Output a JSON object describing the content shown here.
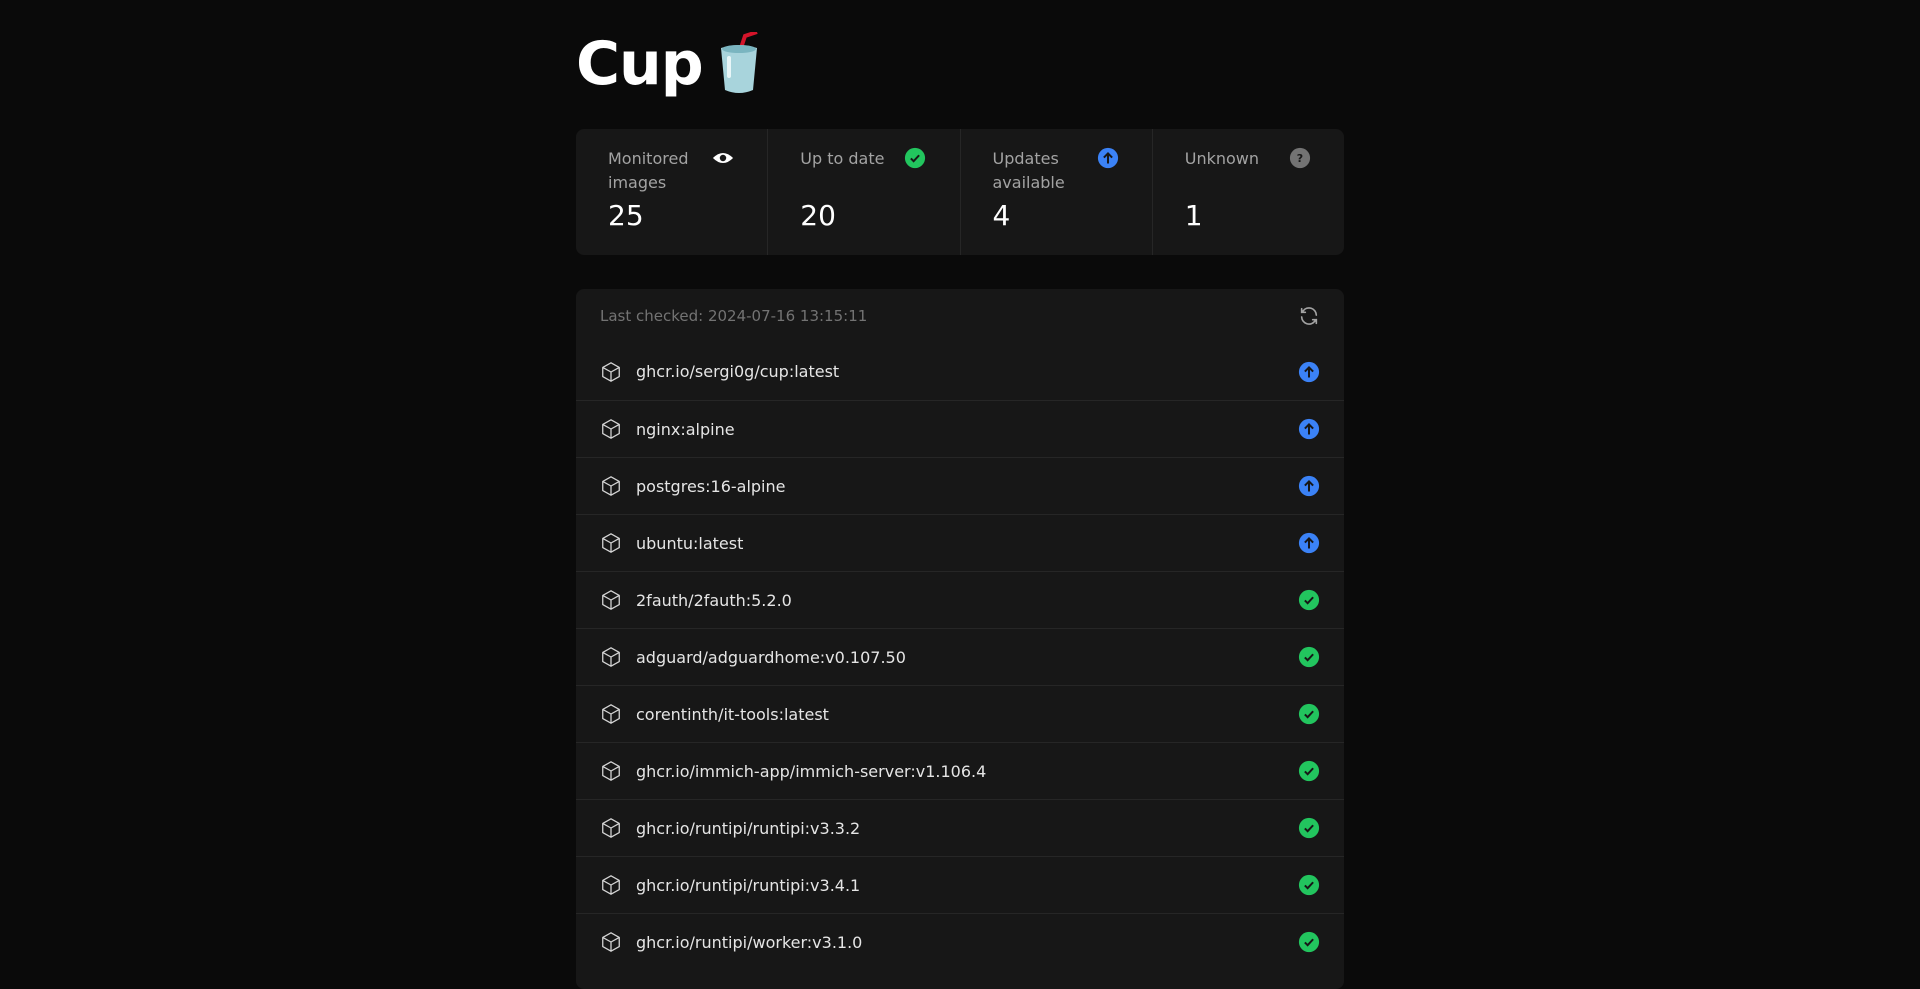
{
  "header": {
    "title": "Cup",
    "logo_icon": "cup-with-straw-icon"
  },
  "colors": {
    "up_to_date": "#22c55e",
    "update": "#3b82f6",
    "unknown": "#737373"
  },
  "stats": [
    {
      "label": "Monitored images",
      "value": "25",
      "icon": "eye-icon"
    },
    {
      "label": "Up to date",
      "value": "20",
      "icon": "check-circle-icon"
    },
    {
      "label": "Updates available",
      "value": "4",
      "icon": "arrow-up-circle-icon"
    },
    {
      "label": "Unknown",
      "value": "1",
      "icon": "help-circle-icon"
    }
  ],
  "list": {
    "last_checked": "Last checked: 2024-07-16 13:15:11",
    "refresh_icon": "refresh-icon",
    "images": [
      {
        "name": "ghcr.io/sergi0g/cup:latest",
        "status": "update"
      },
      {
        "name": "nginx:alpine",
        "status": "update"
      },
      {
        "name": "postgres:16-alpine",
        "status": "update"
      },
      {
        "name": "ubuntu:latest",
        "status": "update"
      },
      {
        "name": "2fauth/2fauth:5.2.0",
        "status": "up_to_date"
      },
      {
        "name": "adguard/adguardhome:v0.107.50",
        "status": "up_to_date"
      },
      {
        "name": "corentinth/it-tools:latest",
        "status": "up_to_date"
      },
      {
        "name": "ghcr.io/immich-app/immich-server:v1.106.4",
        "status": "up_to_date"
      },
      {
        "name": "ghcr.io/runtipi/runtipi:v3.3.2",
        "status": "up_to_date"
      },
      {
        "name": "ghcr.io/runtipi/runtipi:v3.4.1",
        "status": "up_to_date"
      },
      {
        "name": "ghcr.io/runtipi/worker:v3.1.0",
        "status": "up_to_date"
      }
    ]
  }
}
